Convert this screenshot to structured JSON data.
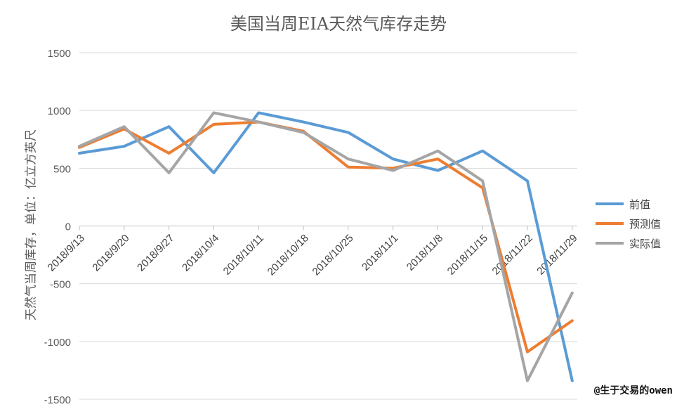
{
  "chart_data": {
    "type": "line",
    "title": "美国当周EIA天然气库存走势",
    "ylabel": "天然气当周库存，单位：亿立方英尺",
    "xlabel": "",
    "categories": [
      "2018/9/13",
      "2018/9/20",
      "2018/9/27",
      "2018/10/4",
      "2018/10/11",
      "2018/10/18",
      "2018/10/25",
      "2018/11/1",
      "2018/11/8",
      "2018/11/15",
      "2018/11/22",
      "2018/11/29"
    ],
    "yticks": [
      "1500",
      "1000",
      "500",
      "0",
      "-500",
      "-1000",
      "-1500"
    ],
    "ylim": [
      -1500,
      1500
    ],
    "grid": true,
    "legend_position": "right",
    "series": [
      {
        "name": "前值",
        "color": "#5b9bd5",
        "values": [
          630,
          690,
          860,
          460,
          980,
          900,
          810,
          580,
          480,
          650,
          390,
          -1340
        ]
      },
      {
        "name": "预测值",
        "color": "#ed7d31",
        "values": [
          680,
          840,
          630,
          880,
          900,
          820,
          510,
          500,
          580,
          330,
          -1090,
          -820
        ]
      },
      {
        "name": "实际值",
        "color": "#a5a5a5",
        "values": [
          690,
          860,
          460,
          980,
          900,
          810,
          580,
          480,
          650,
          390,
          -1340,
          -580
        ]
      }
    ]
  },
  "watermark": "@生于交易的owen"
}
